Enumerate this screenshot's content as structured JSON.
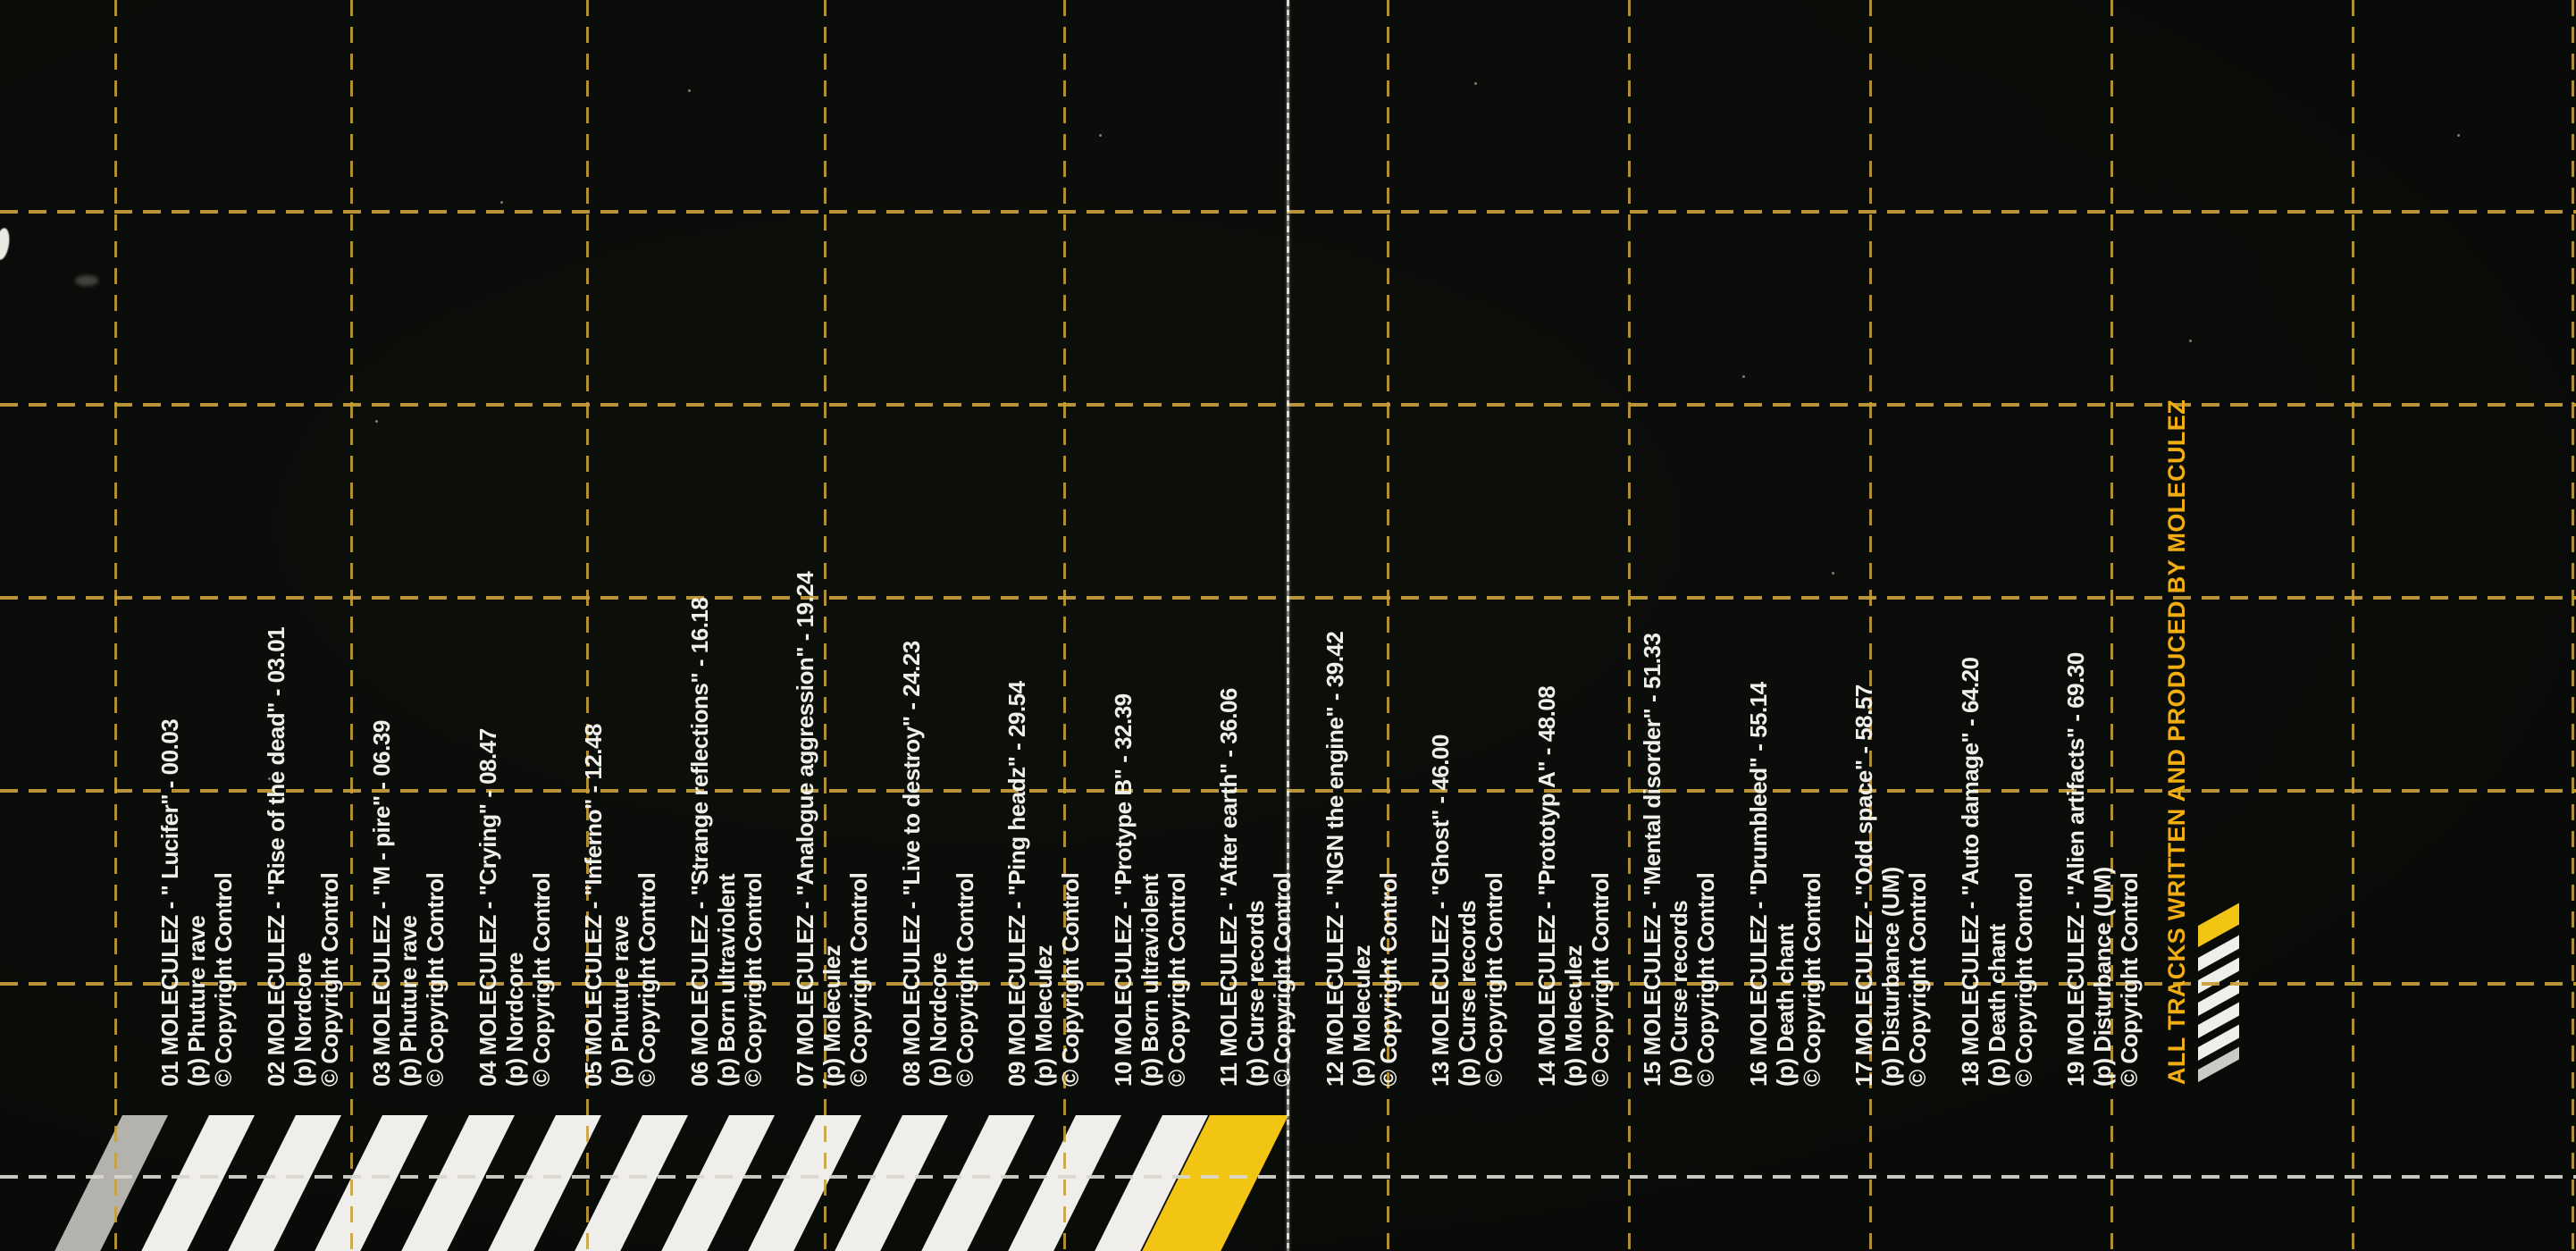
{
  "artwork": {
    "credit": "ALL TRACKS WRITTEN AND PRODUCED BY MOLECULEZ",
    "tracks": [
      {
        "line1": "01 MOLECULEZ - \" Lucifer\" - 00.03",
        "line2": "(p) Phuture rave",
        "line3": "© Copyright Control"
      },
      {
        "line1": "02 MOLECULEZ - \"Rise of the dead\" - 03.01",
        "line2": "(p) Nordcore",
        "line3": "© Copyright Control"
      },
      {
        "line1": "03 MOLECULEZ - \"M - pire\" - 06.39",
        "line2": "(p) Phuture rave",
        "line3": "© Copyright Control"
      },
      {
        "line1": "04 MOLECULEZ - \"Crying\" - 08.47",
        "line2": "(p) Nordcore",
        "line3": "© Copyright Control"
      },
      {
        "line1": "05 MOLECULEZ - \"Inferno\" - 12.48",
        "line2": "(p) Phuture rave",
        "line3": "© Copyright Control"
      },
      {
        "line1": "06 MOLECULEZ - \"Strange reflections\" - 16.18",
        "line2": "(p) Born ultraviolent",
        "line3": "© Copyright Control"
      },
      {
        "line1": "07 MOLECULEZ - \"Analogue aggression\" - 19.24",
        "line2": "(p) Moleculez",
        "line3": "© Copyright Control"
      },
      {
        "line1": "08 MOLECULEZ - \"Live to destroy\" - 24.23",
        "line2": "(p) Nordcore",
        "line3": "© Copyright Control"
      },
      {
        "line1": "09 MOLECULEZ - \"Ping headz\" - 29.54",
        "line2": "(p) Moleculez",
        "line3": "© Copyright Control"
      },
      {
        "line1": "10 MOLECULEZ - \"Protype B\" - 32.39",
        "line2": "(p) Born ultraviolent",
        "line3": "© Copyright Control"
      },
      {
        "line1": "11 MOLECULEZ - \"After earth\" - 36.06",
        "line2": "(p) Curse records",
        "line3": "© Copyright Control"
      },
      {
        "line1": "12 MOLECULEZ - \"NGN the engine\" - 39.42",
        "line2": "(p) Moleculez",
        "line3": "© Copyright Control"
      },
      {
        "line1": "13 MOLECULEZ - \"Ghost\" - 46.00",
        "line2": "(p) Curse records",
        "line3": "© Copyright Control"
      },
      {
        "line1": "14 MOLECULEZ - \"Prototyp A\" - 48.08",
        "line2": "(p) Moleculez",
        "line3": "© Copyright Control"
      },
      {
        "line1": "15 MOLECULEZ - \"Mental disorder\" - 51.33",
        "line2": "(p) Curse records",
        "line3": "© Copyright Control"
      },
      {
        "line1": "16 MOLECULEZ - \"Drumbleed\" - 55.14",
        "line2": "(p) Death chant",
        "line3": "© Copyright Control"
      },
      {
        "line1": "17 MOLECULEZ - \"Odd space\" - 58.57",
        "line2": "(p) Disturbance (UM)",
        "line3": "© Copyright Control"
      },
      {
        "line1": "18 MOLECULEZ - \"Auto damage\" - 64.20",
        "line2": "(p) Death chant",
        "line3": "© Copyright Control"
      },
      {
        "line1": "19 MOLECULEZ - \"Alien artifacts\" - 69.30",
        "line2": "(p) Disturbance (UM)",
        "line3": "© Copyright Control"
      }
    ],
    "colors": {
      "background": "#0b0d09",
      "grid_yellow": "#c7a03a",
      "grid_white": "#d9d7cd",
      "accent_yellow": "#f2ae10",
      "stripe_white": "#efeeea",
      "stripe_gray": "#b4b2ad",
      "stripe_yellow": "#f2c414",
      "text_white": "#f0efe9"
    }
  }
}
